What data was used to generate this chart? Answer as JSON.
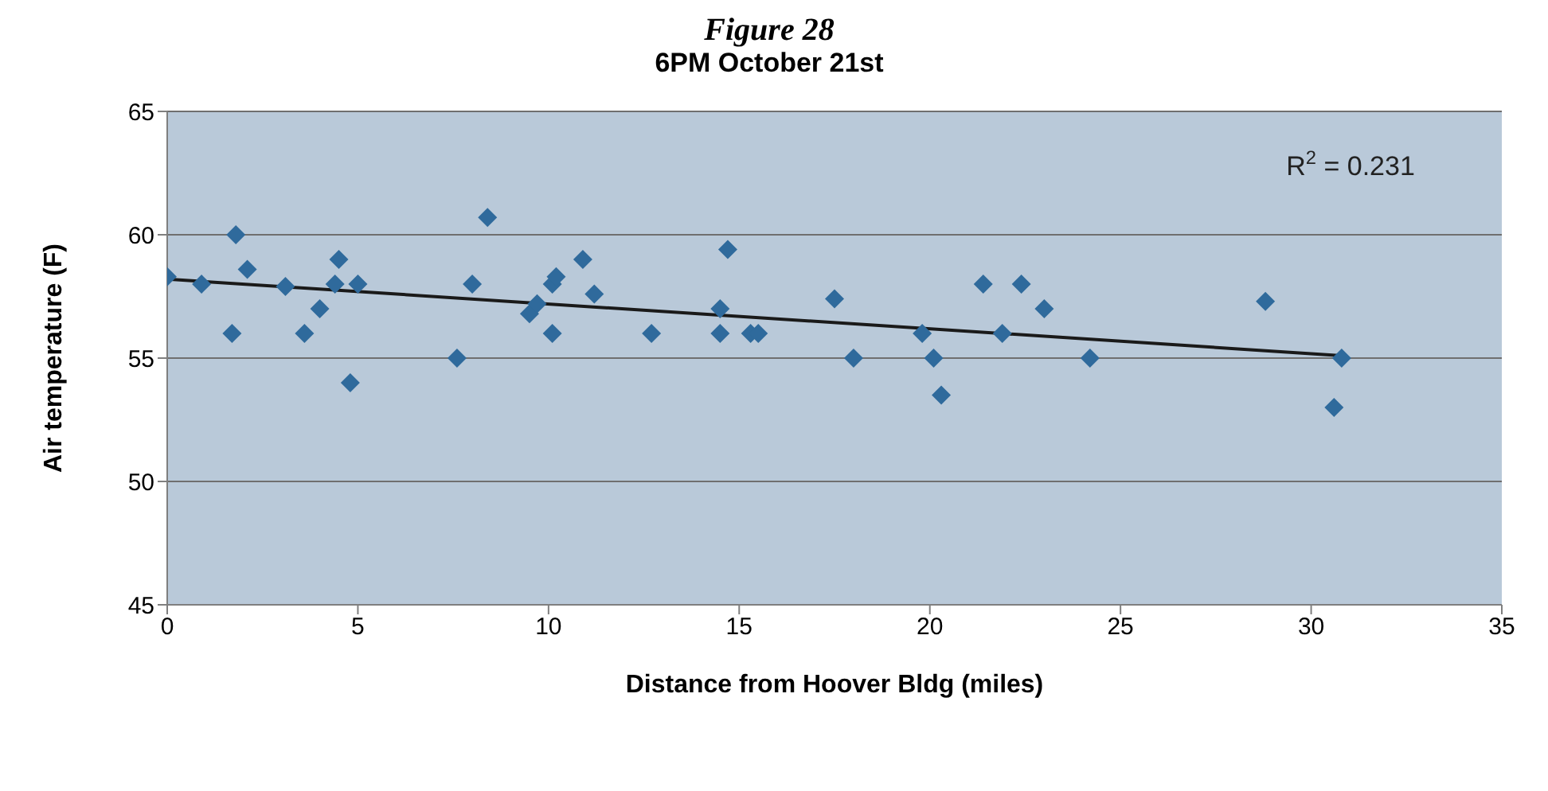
{
  "chart_data": {
    "type": "scatter",
    "title": "Figure 28",
    "subtitle": "6PM October 21st",
    "xlabel": "Distance from Hoover Bldg (miles)",
    "ylabel": "Air temperature (F)",
    "annotations": [
      "R$^{2}$ = 0.231"
    ],
    "xlim": [
      0,
      35
    ],
    "xticks": [
      0,
      5,
      10,
      15,
      20,
      25,
      30,
      35
    ],
    "ylim": [
      45,
      65
    ],
    "yticks": [
      45,
      50,
      55,
      60,
      65
    ],
    "grid": "y",
    "legend": false,
    "series": [
      {
        "marker": "diamond",
        "color": "#2f6a9c",
        "x": [
          0,
          0.9,
          1.7,
          1.8,
          2.1,
          3.1,
          3.6,
          4.0,
          4.4,
          4.5,
          4.8,
          5.0,
          7.6,
          8.0,
          8.4,
          9.5,
          9.7,
          10.1,
          10.1,
          10.2,
          10.9,
          11.2,
          12.7,
          14.5,
          14.5,
          14.7,
          15.3,
          15.5,
          17.5,
          18.0,
          19.8,
          20.1,
          20.3,
          21.4,
          21.9,
          22.4,
          23.0,
          24.2,
          28.8,
          30.8,
          30.6
        ],
        "values": [
          58.3,
          58,
          56,
          60,
          58.6,
          57.9,
          56,
          57,
          58,
          59,
          54,
          58,
          55,
          58,
          60.7,
          56.8,
          57.2,
          58,
          56,
          58.3,
          59,
          57.6,
          56,
          56,
          57,
          59.4,
          56,
          56,
          57.4,
          55,
          56,
          55,
          53.5,
          58,
          56,
          58,
          57,
          55,
          57.3,
          55,
          53
        ]
      },
      {
        "type": "line",
        "color": "#1a1a1a",
        "x": [
          0,
          30.8
        ],
        "values": [
          58.2,
          55.1
        ]
      }
    ]
  }
}
